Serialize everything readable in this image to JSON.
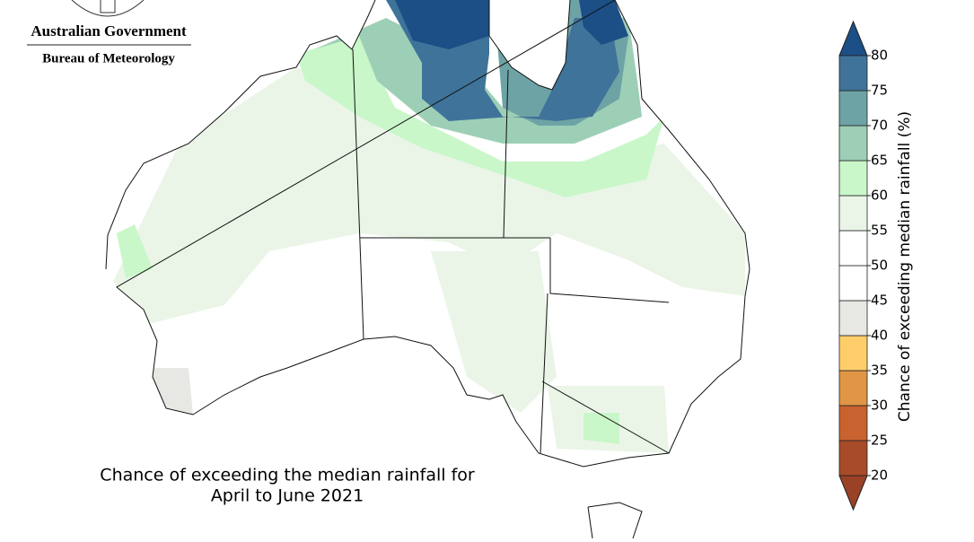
{
  "header": {
    "agency": "Australian Government",
    "bureau": "Bureau of Meteorology"
  },
  "map": {
    "title_lines": [
      "Chance of exceeding the median rainfall for",
      "April to June 2021"
    ]
  },
  "colorbar": {
    "label": "Chance of exceeding median rainfall (%)",
    "ticks": [
      20,
      25,
      30,
      35,
      40,
      45,
      50,
      55,
      60,
      65,
      70,
      75,
      80
    ],
    "colors": [
      "#9a4126",
      "#a84b29",
      "#c8622f",
      "#e09645",
      "#fdce6a",
      "#e7e7e3",
      "#ffffff",
      "#ffffff",
      "#eaf5e8",
      "#c9f7c9",
      "#9dcfb7",
      "#6ea3a6",
      "#3f7399",
      "#1b4f86"
    ]
  }
}
